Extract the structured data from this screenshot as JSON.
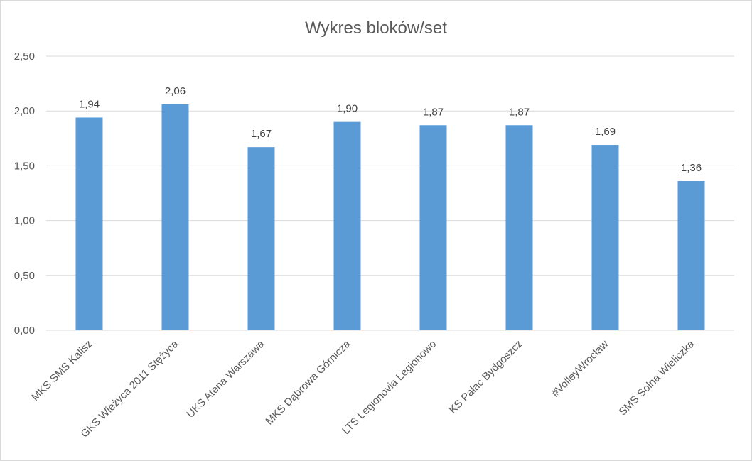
{
  "chart_data": {
    "type": "bar",
    "title": "Wykres bloków/set",
    "xlabel": "",
    "ylabel": "",
    "categories": [
      "MKS SMS Kalisz",
      "GKS Wieżyca 2011 Stężyca",
      "UKS Atena Warszawa",
      "MKS Dąbrowa Górnicza",
      "LTS Legionovia Legionowo",
      "KS Pałac Bydgoszcz",
      "#VolleyWrocław",
      "SMS Solna Wieliczka"
    ],
    "values": [
      1.94,
      2.06,
      1.67,
      1.9,
      1.87,
      1.87,
      1.69,
      1.36
    ],
    "data_labels": [
      "1,94",
      "2,06",
      "1,67",
      "1,90",
      "1,87",
      "1,87",
      "1,69",
      "1,36"
    ],
    "ylim": [
      0,
      2.5
    ],
    "yticks": [
      0,
      0.5,
      1,
      1.5,
      2,
      2.5
    ],
    "ytick_labels": [
      "0,00",
      "0,50",
      "1,00",
      "1,50",
      "2,00",
      "2,50"
    ],
    "grid": true,
    "legend": "none",
    "bar_color": "#5b9bd5"
  }
}
